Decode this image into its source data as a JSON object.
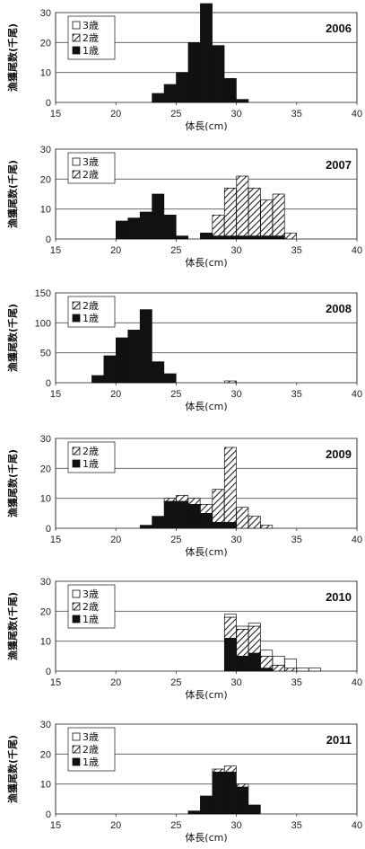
{
  "chart_data": [
    {
      "type": "bar",
      "year": "2006",
      "ylabel": "漁獲尾数(千尾)",
      "xlabel": "体長(cm)",
      "ylim": [
        0,
        30
      ],
      "yticks": [
        0,
        10,
        20,
        30
      ],
      "xlim": [
        15,
        40
      ],
      "xticks": [
        15,
        20,
        25,
        30,
        35,
        40
      ],
      "legend": [
        "3歳",
        "2歳",
        "1歳"
      ],
      "bins": [
        {
          "x": 23.5,
          "s1": 3
        },
        {
          "x": 24.5,
          "s1": 6
        },
        {
          "x": 25.5,
          "s1": 10
        },
        {
          "x": 26.5,
          "s1": 20
        },
        {
          "x": 27.5,
          "s1": 33
        },
        {
          "x": 28.5,
          "s1": 19
        },
        {
          "x": 29.5,
          "s1": 8
        },
        {
          "x": 30.5,
          "s1": 1
        }
      ]
    },
    {
      "type": "bar",
      "year": "2007",
      "ylabel": "漁獲尾数(千尾)",
      "xlabel": "体長(cm)",
      "ylim": [
        0,
        30
      ],
      "yticks": [
        0,
        10,
        20,
        30
      ],
      "xlim": [
        15,
        40
      ],
      "xticks": [
        15,
        20,
        25,
        30,
        35,
        40
      ],
      "legend": [
        "3歳",
        "2歳"
      ],
      "bins": [
        {
          "x": 20.5,
          "s1": 6
        },
        {
          "x": 21.5,
          "s1": 7
        },
        {
          "x": 22.5,
          "s1": 9
        },
        {
          "x": 23.5,
          "s1": 15
        },
        {
          "x": 24.5,
          "s1": 8
        },
        {
          "x": 25.5,
          "s1": 1
        },
        {
          "x": 27.5,
          "s1": 2
        },
        {
          "x": 28.5,
          "s1": 1,
          "s2": 7
        },
        {
          "x": 29.5,
          "s1": 1,
          "s2": 16
        },
        {
          "x": 30.5,
          "s1": 1,
          "s2": 20
        },
        {
          "x": 31.5,
          "s1": 1,
          "s2": 16
        },
        {
          "x": 32.5,
          "s1": 1,
          "s2": 12
        },
        {
          "x": 33.5,
          "s1": 1,
          "s2": 14
        },
        {
          "x": 34.5,
          "s2": 2
        }
      ]
    },
    {
      "type": "bar",
      "year": "2008",
      "ylabel": "漁獲尾数(千尾)",
      "xlabel": "体長(cm)",
      "ylim": [
        0,
        150
      ],
      "yticks": [
        0,
        50,
        100,
        150
      ],
      "xlim": [
        15,
        40
      ],
      "xticks": [
        15,
        20,
        25,
        30,
        35,
        40
      ],
      "legend": [
        "2歳",
        "1歳"
      ],
      "bins": [
        {
          "x": 18.5,
          "s1": 12
        },
        {
          "x": 19.5,
          "s1": 45
        },
        {
          "x": 20.5,
          "s1": 75
        },
        {
          "x": 21.5,
          "s1": 88
        },
        {
          "x": 22.5,
          "s1": 122
        },
        {
          "x": 23.5,
          "s1": 35
        },
        {
          "x": 24.5,
          "s1": 15
        },
        {
          "x": 29.5,
          "s2": 3
        }
      ]
    },
    {
      "type": "bar",
      "year": "2009",
      "ylabel": "漁獲尾数(千尾)",
      "xlabel": "体長(cm)",
      "ylim": [
        0,
        30
      ],
      "yticks": [
        0,
        10,
        20,
        30
      ],
      "xlim": [
        15,
        40
      ],
      "xticks": [
        15,
        20,
        25,
        30,
        35,
        40
      ],
      "legend": [
        "2歳",
        "1歳"
      ],
      "bins": [
        {
          "x": 22.5,
          "s1": 1
        },
        {
          "x": 23.5,
          "s1": 4
        },
        {
          "x": 24.5,
          "s1": 9,
          "s2": 1
        },
        {
          "x": 25.5,
          "s1": 9,
          "s2": 2
        },
        {
          "x": 26.5,
          "s1": 8,
          "s2": 2
        },
        {
          "x": 27.5,
          "s1": 5,
          "s2": 3
        },
        {
          "x": 28.5,
          "s1": 2,
          "s2": 11
        },
        {
          "x": 29.5,
          "s1": 2,
          "s2": 25
        },
        {
          "x": 30.5,
          "s2": 7
        },
        {
          "x": 31.5,
          "s2": 4
        },
        {
          "x": 32.5,
          "s2": 1
        }
      ]
    },
    {
      "type": "bar",
      "year": "2010",
      "ylabel": "漁獲尾数(千尾)",
      "xlabel": "体長(cm)",
      "ylim": [
        0,
        30
      ],
      "yticks": [
        0,
        10,
        20,
        30
      ],
      "xlim": [
        15,
        40
      ],
      "xticks": [
        15,
        20,
        25,
        30,
        35,
        40
      ],
      "legend": [
        "3歳",
        "2歳",
        "1歳"
      ],
      "bins": [
        {
          "x": 29.5,
          "s1": 11,
          "s2": 7,
          "s3": 1
        },
        {
          "x": 30.5,
          "s1": 5,
          "s2": 9,
          "s3": 1
        },
        {
          "x": 31.5,
          "s1": 6,
          "s2": 9,
          "s3": 1
        },
        {
          "x": 32.5,
          "s1": 1,
          "s2": 4,
          "s3": 2
        },
        {
          "x": 33.5,
          "s2": 2,
          "s3": 3
        },
        {
          "x": 34.5,
          "s2": 1,
          "s3": 3
        },
        {
          "x": 35.5,
          "s3": 1
        },
        {
          "x": 36.5,
          "s3": 1
        }
      ]
    },
    {
      "type": "bar",
      "year": "2011",
      "ylabel": "漁獲尾数(千尾)",
      "xlabel": "体長(cm)",
      "ylim": [
        0,
        30
      ],
      "yticks": [
        0,
        10,
        20,
        30
      ],
      "xlim": [
        15,
        40
      ],
      "xticks": [
        15,
        20,
        25,
        30,
        35,
        40
      ],
      "legend": [
        "3歳",
        "2歳",
        "1歳"
      ],
      "bins": [
        {
          "x": 26.5,
          "s1": 1
        },
        {
          "x": 27.5,
          "s1": 6
        },
        {
          "x": 28.5,
          "s1": 14,
          "s2": 1
        },
        {
          "x": 29.5,
          "s1": 14,
          "s2": 2
        },
        {
          "x": 30.5,
          "s1": 9,
          "s2": 1
        },
        {
          "x": 31.5,
          "s1": 3
        }
      ]
    }
  ],
  "colors": {
    "age1": "#111111",
    "age2_hatch": "#222222",
    "age3": "#ffffff"
  }
}
